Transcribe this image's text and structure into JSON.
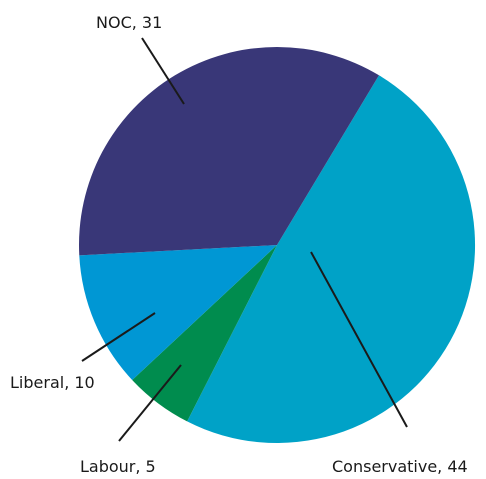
{
  "chart_data": {
    "type": "pie",
    "slices": [
      {
        "label": "Conservative",
        "value": 44,
        "color": "#00a2c7",
        "text": "Conservative, 44"
      },
      {
        "label": "Labour",
        "value": 5,
        "color": "#008c4e",
        "text": "Labour, 5"
      },
      {
        "label": "Liberal",
        "value": 10,
        "color": "#0097d4",
        "text": "Liberal, 10"
      },
      {
        "label": "NOC",
        "value": 31,
        "color": "#393778",
        "text": "NOC, 31"
      }
    ],
    "start_angle_deg": 31,
    "direction": "clockwise",
    "legend": "none"
  }
}
